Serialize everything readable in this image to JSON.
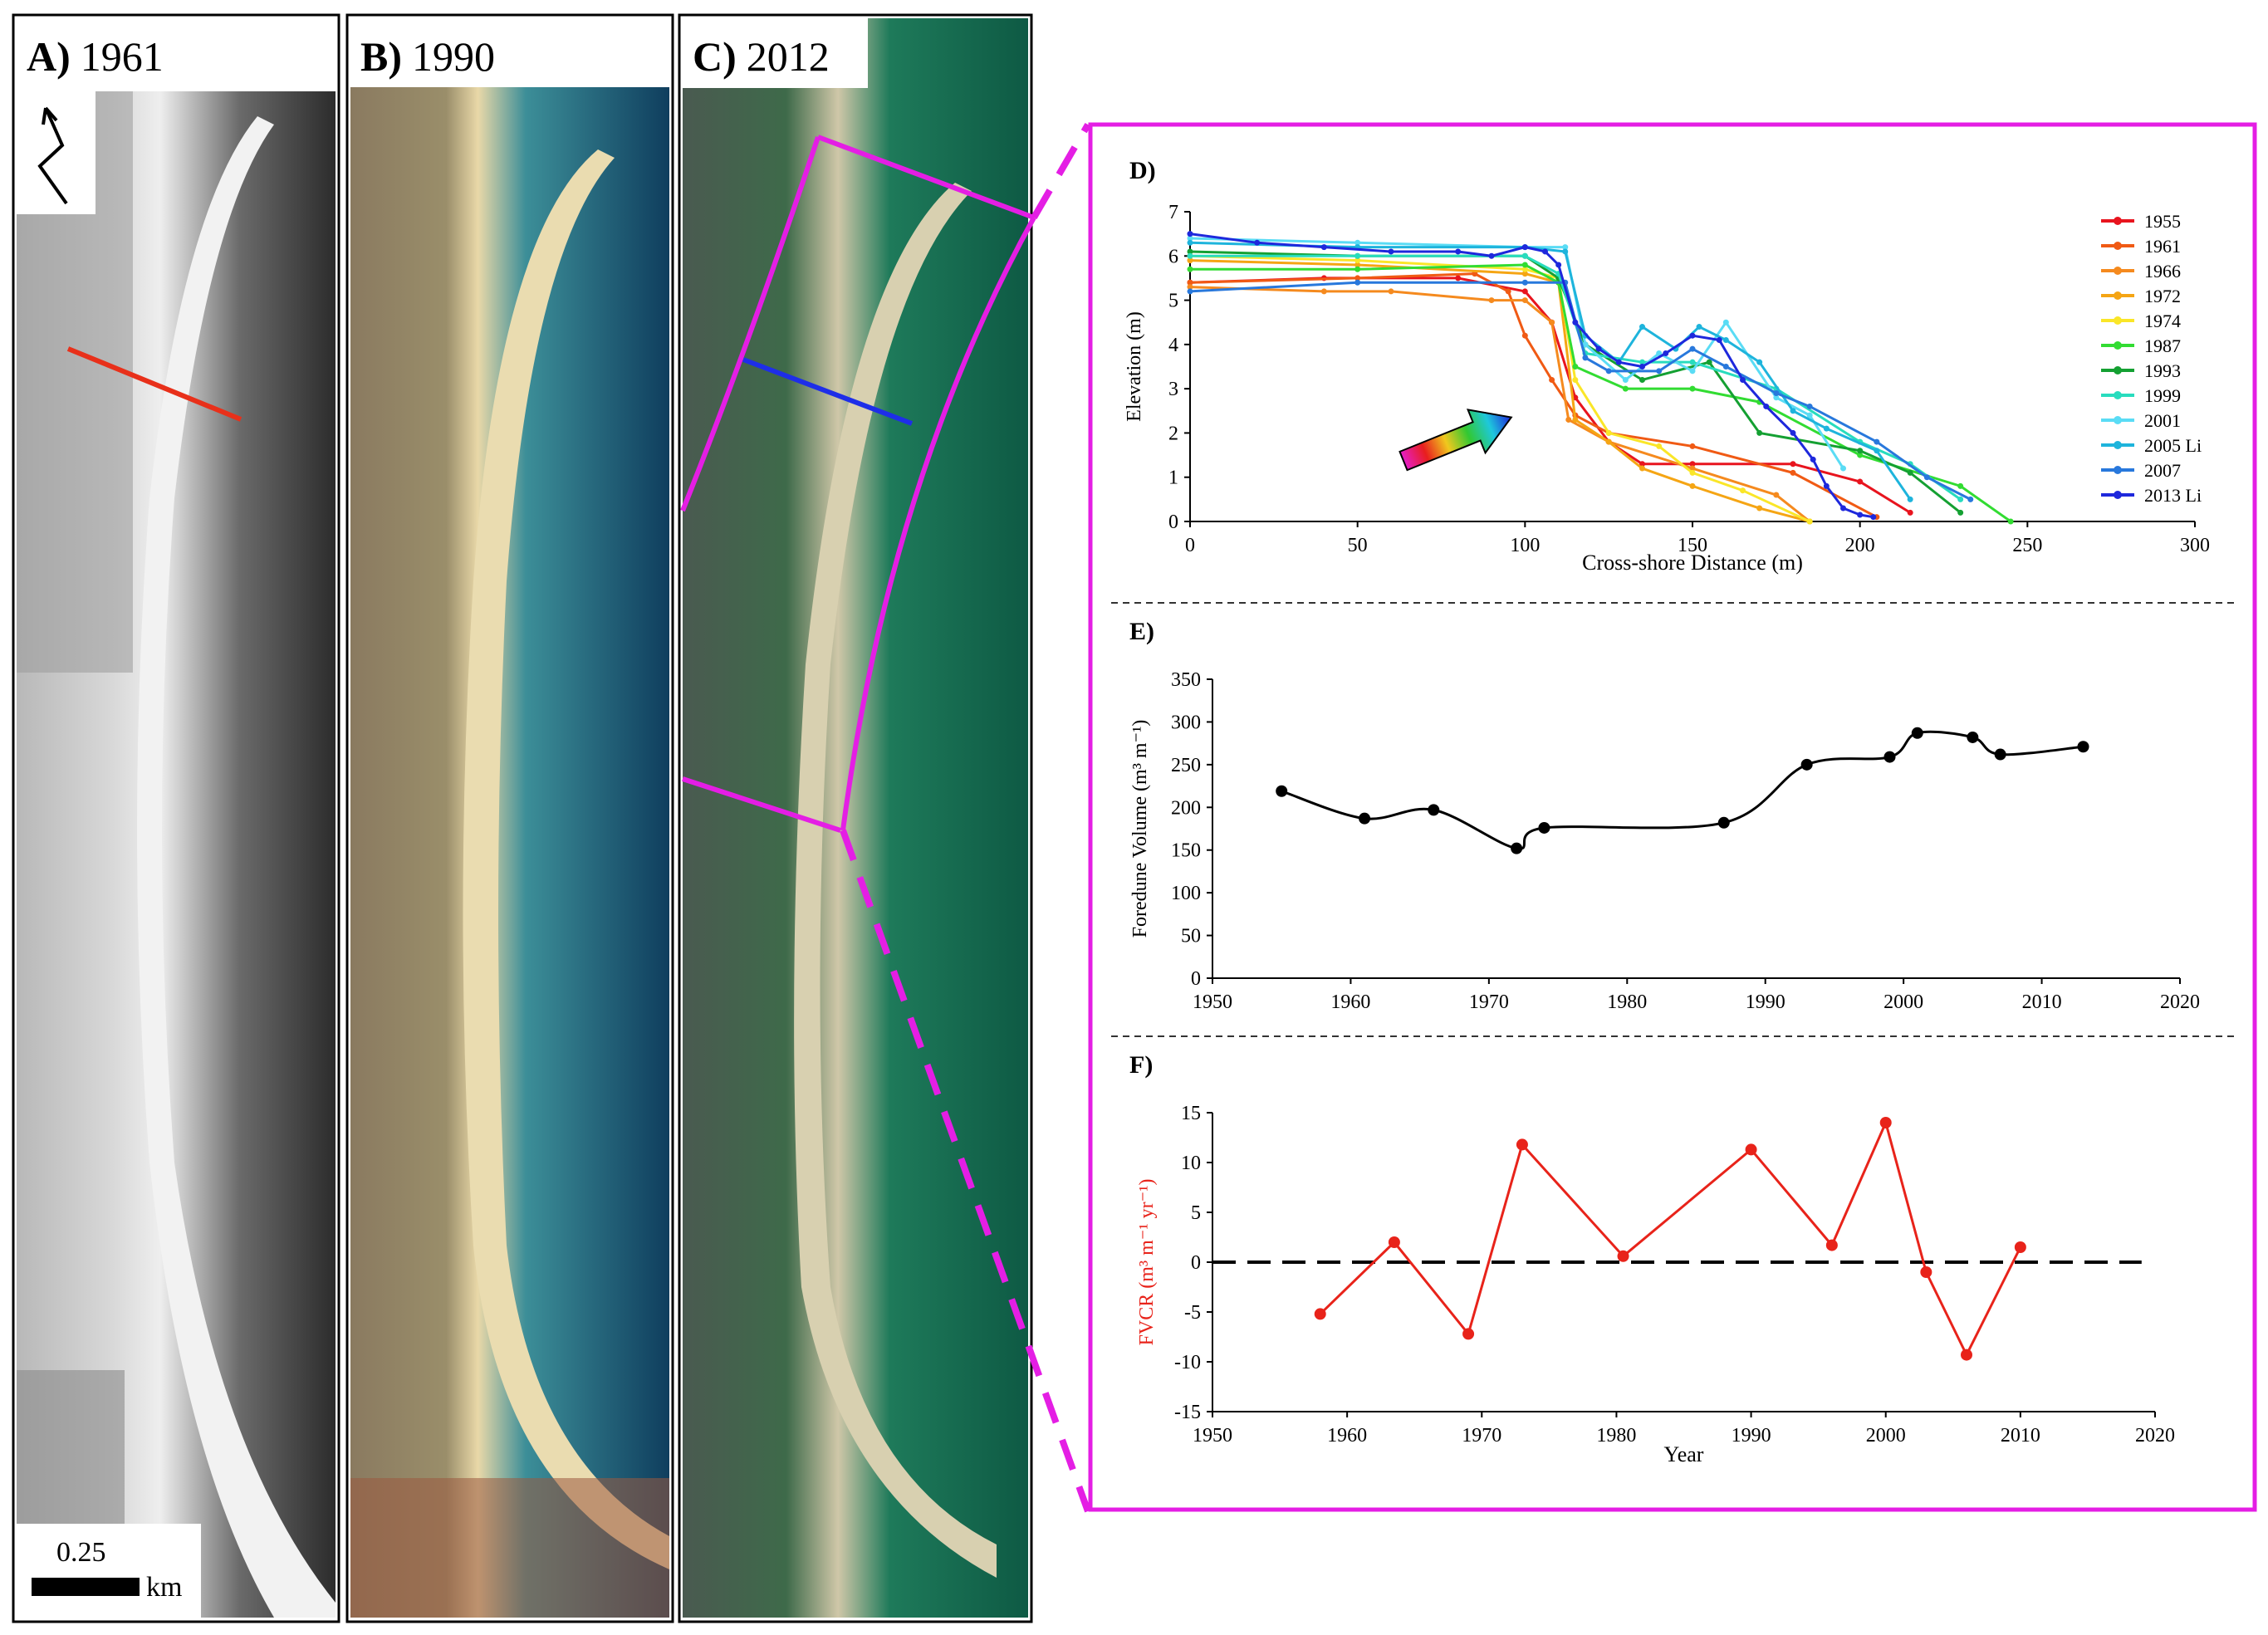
{
  "panels": {
    "a": {
      "letter": "A)",
      "year": "1961"
    },
    "b": {
      "letter": "B)",
      "year": "1990"
    },
    "c": {
      "letter": "C)",
      "year": "2012"
    }
  },
  "scale_bar": {
    "value": "0.25",
    "unit": "km"
  },
  "colors": {
    "magenta": "#e41ee4",
    "red_transect": "#e8301a",
    "blue_transect": "#1e2ee8",
    "fvcr_red": "#e8231a"
  },
  "chart_data": [
    {
      "panel": "D)",
      "type": "line",
      "title": "",
      "xlabel": "Cross-shore Distance  (m)",
      "ylabel": "Elevation  (m)",
      "xlim": [
        0,
        300
      ],
      "ylim": [
        0,
        7
      ],
      "xticks": [
        0,
        50,
        100,
        150,
        200,
        250,
        300
      ],
      "yticks": [
        0,
        1,
        2,
        3,
        4,
        5,
        6,
        7
      ],
      "legend": "top-right",
      "series": [
        {
          "name": "1955",
          "color": "#e8141e",
          "x": [
            0,
            40,
            80,
            100,
            108,
            115,
            125,
            135,
            150,
            180,
            200,
            215
          ],
          "y": [
            5.4,
            5.5,
            5.5,
            5.2,
            4.5,
            2.8,
            1.8,
            1.3,
            1.3,
            1.3,
            0.9,
            0.2
          ]
        },
        {
          "name": "1961",
          "color": "#f05a14",
          "x": [
            0,
            50,
            85,
            95,
            100,
            108,
            115,
            125,
            150,
            180,
            205
          ],
          "y": [
            5.4,
            5.5,
            5.6,
            5.2,
            4.2,
            3.2,
            2.4,
            2.0,
            1.7,
            1.1,
            0.1
          ]
        },
        {
          "name": "1966",
          "color": "#f58a1e",
          "x": [
            0,
            40,
            60,
            90,
            100,
            108,
            113,
            125,
            150,
            175,
            185
          ],
          "y": [
            5.3,
            5.2,
            5.2,
            5.0,
            5.0,
            4.5,
            2.3,
            1.8,
            1.2,
            0.6,
            0.0
          ]
        },
        {
          "name": "1972",
          "color": "#f5a514",
          "x": [
            0,
            50,
            100,
            110,
            115,
            125,
            135,
            150,
            170,
            185
          ],
          "y": [
            5.9,
            5.8,
            5.6,
            5.4,
            2.3,
            1.8,
            1.2,
            0.8,
            0.3,
            0.0
          ]
        },
        {
          "name": "1974",
          "color": "#fae628",
          "x": [
            0,
            50,
            100,
            110,
            115,
            125,
            140,
            150,
            165,
            185
          ],
          "y": [
            6.0,
            5.9,
            5.7,
            5.5,
            3.2,
            2.0,
            1.7,
            1.1,
            0.7,
            0.0
          ]
        },
        {
          "name": "1987",
          "color": "#32dc32",
          "x": [
            0,
            50,
            100,
            110,
            115,
            130,
            150,
            170,
            200,
            230,
            245
          ],
          "y": [
            5.7,
            5.7,
            5.8,
            5.4,
            3.5,
            3.0,
            3.0,
            2.7,
            1.5,
            0.8,
            0.0
          ]
        },
        {
          "name": "1993",
          "color": "#14a032",
          "x": [
            0,
            50,
            100,
            110,
            118,
            135,
            155,
            170,
            200,
            215,
            230
          ],
          "y": [
            6.1,
            6.0,
            6.0,
            5.5,
            4.0,
            3.2,
            3.6,
            2.0,
            1.6,
            1.1,
            0.2
          ]
        },
        {
          "name": "1999",
          "color": "#28dcbe",
          "x": [
            0,
            50,
            100,
            110,
            118,
            135,
            150,
            175,
            200,
            215,
            230
          ],
          "y": [
            6.0,
            6.0,
            6.0,
            5.6,
            3.8,
            3.6,
            3.6,
            3.0,
            1.8,
            1.3,
            0.5
          ]
        },
        {
          "name": "2001",
          "color": "#5adcf5",
          "x": [
            0,
            50,
            100,
            112,
            118,
            130,
            140,
            150,
            160,
            175,
            185,
            195
          ],
          "y": [
            6.4,
            6.3,
            6.2,
            6.2,
            4.0,
            3.2,
            3.8,
            3.4,
            4.5,
            2.8,
            2.4,
            1.2
          ]
        },
        {
          "name": "2005 Li",
          "color": "#1eb4dc",
          "x": [
            0,
            50,
            100,
            112,
            118,
            128,
            135,
            145,
            152,
            160,
            170,
            180,
            190,
            205,
            215
          ],
          "y": [
            6.3,
            6.2,
            6.2,
            6.1,
            4.2,
            3.6,
            4.4,
            3.9,
            4.4,
            4.1,
            3.6,
            2.5,
            2.1,
            1.6,
            0.5
          ]
        },
        {
          "name": "2007",
          "color": "#2878dc",
          "x": [
            0,
            50,
            100,
            112,
            118,
            125,
            140,
            150,
            160,
            175,
            185,
            205,
            220,
            233
          ],
          "y": [
            5.2,
            5.4,
            5.4,
            5.4,
            3.7,
            3.4,
            3.4,
            3.9,
            3.5,
            2.9,
            2.6,
            1.8,
            1.0,
            0.5
          ]
        },
        {
          "name": "2013 Li",
          "color": "#1e28dc",
          "x": [
            0,
            20,
            40,
            60,
            80,
            90,
            100,
            106,
            110,
            115,
            122,
            128,
            135,
            142,
            150,
            158,
            165,
            172,
            180,
            186,
            190,
            195,
            200,
            204
          ],
          "y": [
            6.5,
            6.3,
            6.2,
            6.1,
            6.1,
            6.0,
            6.2,
            6.1,
            5.8,
            4.5,
            3.9,
            3.6,
            3.5,
            3.8,
            4.2,
            4.1,
            3.2,
            2.6,
            2.0,
            1.4,
            0.8,
            0.3,
            0.15,
            0.1
          ]
        }
      ]
    },
    {
      "panel": "E)",
      "type": "line",
      "title": "",
      "xlabel": "",
      "ylabel": "Foredune Volume  (m³ m⁻¹)",
      "xlim": [
        1950,
        2020
      ],
      "ylim": [
        0,
        350
      ],
      "xticks": [
        1950,
        1960,
        1970,
        1980,
        1990,
        2000,
        2010,
        2020
      ],
      "yticks": [
        0,
        50,
        100,
        150,
        200,
        250,
        300,
        350
      ],
      "series": [
        {
          "name": "Foredune Volume",
          "color": "#000000",
          "x": [
            1955,
            1961,
            1966,
            1972,
            1974,
            1987,
            1993,
            1999,
            2001,
            2005,
            2007,
            2013
          ],
          "y": [
            219,
            187,
            197,
            152,
            176,
            182,
            250,
            259,
            287,
            282,
            262,
            271
          ]
        }
      ]
    },
    {
      "panel": "F)",
      "type": "line",
      "title": "",
      "xlabel": "Year",
      "ylabel": "FVCR (m³ m⁻¹ yr⁻¹)",
      "xlim": [
        1950,
        2020
      ],
      "ylim": [
        -15,
        15
      ],
      "xticks": [
        1950,
        1960,
        1970,
        1980,
        1990,
        2000,
        2010,
        2020
      ],
      "yticks": [
        -15,
        -10,
        -5,
        0,
        5,
        10,
        15
      ],
      "reference_line": 0,
      "series": [
        {
          "name": "FVCR",
          "color": "#e8231a",
          "x": [
            1958,
            1963.5,
            1969,
            1973,
            1980.5,
            1990,
            1996,
            2000,
            2003,
            2006,
            2010
          ],
          "y": [
            -5.2,
            2.0,
            -7.2,
            11.8,
            0.6,
            11.3,
            1.7,
            14.0,
            -1.0,
            -9.3,
            1.5
          ]
        }
      ]
    }
  ]
}
